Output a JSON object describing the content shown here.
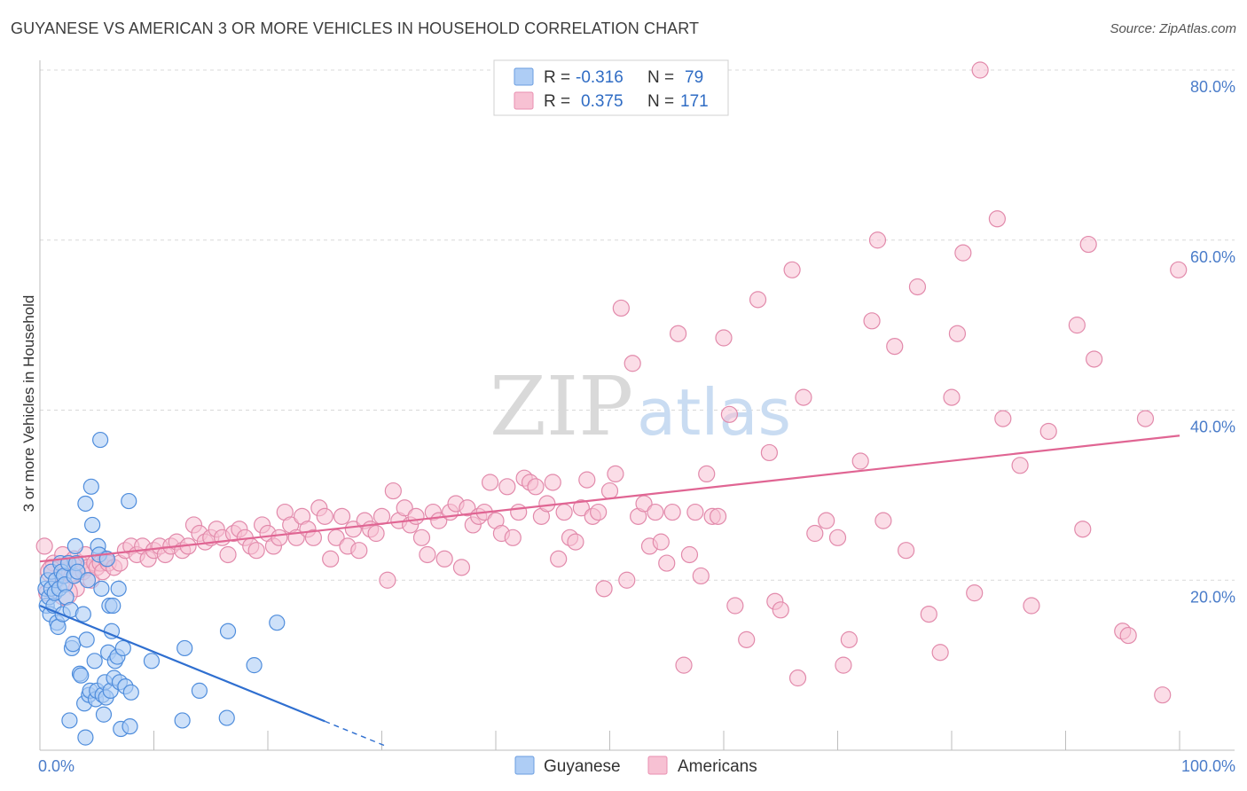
{
  "header": {
    "title": "GUYANESE VS AMERICAN 3 OR MORE VEHICLES IN HOUSEHOLD CORRELATION CHART",
    "source": "Source: ZipAtlas.com"
  },
  "legend": {
    "r_label": "R =",
    "n_label": "N =",
    "rows": [
      {
        "r": "-0.316",
        "n": "79",
        "fill": "#aecdf5",
        "stroke": "#6a9de0"
      },
      {
        "r": "0.375",
        "n": "171",
        "fill": "#f7c1d3",
        "stroke": "#e98fb0"
      }
    ]
  },
  "watermark": {
    "zip": "ZIP",
    "atlas": "atlas"
  },
  "colors": {
    "guyanese_fill": "#aecdf5",
    "guyanese_stroke": "#4f8ddc",
    "guyanese_line": "#2f6fd0",
    "american_fill": "#f7c1d3",
    "american_stroke": "#e28aab",
    "american_line": "#e06593",
    "grid": "#d9d9d9",
    "tick_text": "#4a7cc9"
  },
  "chart_data": {
    "type": "scatter",
    "title": "GUYANESE VS AMERICAN 3 OR MORE VEHICLES IN HOUSEHOLD CORRELATION CHART",
    "ylabel": "3 or more Vehicles in Household",
    "xlabel": "",
    "xlim": [
      0,
      100
    ],
    "ylim": [
      0,
      80
    ],
    "x_tick_labels": [
      "0.0%",
      "100.0%"
    ],
    "y_ticks": [
      20,
      40,
      60,
      80
    ],
    "y_tick_labels": [
      "20.0%",
      "40.0%",
      "60.0%",
      "80.0%"
    ],
    "grid": "horizontal dashed",
    "legend_position": "bottom",
    "series": [
      {
        "name": "Guyanese",
        "r": -0.316,
        "n": 79,
        "trend": {
          "x0": 0,
          "y0": 17.0,
          "x1": 25,
          "y1": 3.4,
          "dashed_to_x": 30.5
        },
        "points": [
          [
            0.5,
            19
          ],
          [
            0.6,
            17
          ],
          [
            0.7,
            20
          ],
          [
            0.8,
            18
          ],
          [
            0.9,
            16
          ],
          [
            1.0,
            21
          ],
          [
            1.0,
            19
          ],
          [
            1.2,
            17
          ],
          [
            1.3,
            18.5
          ],
          [
            1.4,
            20
          ],
          [
            1.5,
            15
          ],
          [
            1.6,
            14.5
          ],
          [
            1.7,
            19
          ],
          [
            1.8,
            22
          ],
          [
            1.9,
            21
          ],
          [
            2.0,
            16
          ],
          [
            2.1,
            20.5
          ],
          [
            2.2,
            19.5
          ],
          [
            2.3,
            18
          ],
          [
            2.5,
            22
          ],
          [
            2.6,
            3.5
          ],
          [
            2.7,
            16.5
          ],
          [
            2.8,
            12
          ],
          [
            2.9,
            12.5
          ],
          [
            3.0,
            20.5
          ],
          [
            3.1,
            24
          ],
          [
            3.2,
            22
          ],
          [
            3.3,
            21
          ],
          [
            3.5,
            9
          ],
          [
            3.6,
            8.8
          ],
          [
            3.8,
            16
          ],
          [
            3.9,
            5.5
          ],
          [
            4.0,
            29
          ],
          [
            4.0,
            1.5
          ],
          [
            4.1,
            13
          ],
          [
            4.2,
            20
          ],
          [
            4.3,
            6.5
          ],
          [
            4.4,
            7
          ],
          [
            4.5,
            31
          ],
          [
            4.6,
            26.5
          ],
          [
            4.8,
            10.5
          ],
          [
            4.9,
            6
          ],
          [
            5.0,
            7
          ],
          [
            5.1,
            24
          ],
          [
            5.2,
            23
          ],
          [
            5.3,
            36.5
          ],
          [
            5.4,
            19
          ],
          [
            5.5,
            6.5
          ],
          [
            5.6,
            4.2
          ],
          [
            5.7,
            8
          ],
          [
            5.8,
            6.2
          ],
          [
            5.9,
            22.5
          ],
          [
            6.0,
            11.5
          ],
          [
            6.1,
            17
          ],
          [
            6.2,
            7
          ],
          [
            6.3,
            14
          ],
          [
            6.4,
            17
          ],
          [
            6.5,
            8.5
          ],
          [
            6.6,
            10.5
          ],
          [
            6.8,
            11
          ],
          [
            6.9,
            19
          ],
          [
            7.0,
            8
          ],
          [
            7.1,
            2.5
          ],
          [
            7.3,
            12
          ],
          [
            7.5,
            7.5
          ],
          [
            7.8,
            29.3
          ],
          [
            7.9,
            2.8
          ],
          [
            8.0,
            6.8
          ],
          [
            9.8,
            10.5
          ],
          [
            12.5,
            3.5
          ],
          [
            12.7,
            12
          ],
          [
            14.0,
            7
          ],
          [
            16.4,
            3.8
          ],
          [
            16.5,
            14
          ],
          [
            18.8,
            10
          ],
          [
            20.8,
            15
          ]
        ]
      },
      {
        "name": "Americans",
        "r": 0.375,
        "n": 171,
        "trend": {
          "x0": 0,
          "y0": 22.2,
          "x1": 100,
          "y1": 37.0
        },
        "points": [
          [
            0.4,
            24
          ],
          [
            0.6,
            18.5
          ],
          [
            1.0,
            21.5
          ],
          [
            1.2,
            22
          ],
          [
            1.5,
            20
          ],
          [
            2.0,
            23
          ],
          [
            2.2,
            21
          ],
          [
            2.5,
            22
          ],
          [
            2.8,
            20.5
          ],
          [
            3.0,
            22.5
          ],
          [
            3.2,
            19
          ],
          [
            3.5,
            22
          ],
          [
            3.8,
            21
          ],
          [
            4.0,
            23
          ],
          [
            4.2,
            21.5
          ],
          [
            4.5,
            20
          ],
          [
            4.8,
            22
          ],
          [
            5.0,
            21.5
          ],
          [
            5.3,
            22
          ],
          [
            5.5,
            21
          ],
          [
            5.8,
            22.5
          ],
          [
            6.0,
            22
          ],
          [
            6.5,
            21.5
          ],
          [
            7.0,
            22
          ],
          [
            7.5,
            23.5
          ],
          [
            8.0,
            24
          ],
          [
            8.5,
            23
          ],
          [
            9.0,
            24
          ],
          [
            9.5,
            22.5
          ],
          [
            10.0,
            23.5
          ],
          [
            10.5,
            24
          ],
          [
            11.0,
            23
          ],
          [
            11.5,
            24
          ],
          [
            12.0,
            24.5
          ],
          [
            12.5,
            23.5
          ],
          [
            13.0,
            24
          ],
          [
            13.5,
            26.5
          ],
          [
            14.0,
            25.5
          ],
          [
            14.5,
            24.5
          ],
          [
            15.0,
            25
          ],
          [
            15.5,
            26
          ],
          [
            16.0,
            25
          ],
          [
            16.5,
            23
          ],
          [
            17.0,
            25.5
          ],
          [
            17.5,
            26
          ],
          [
            18.0,
            25
          ],
          [
            18.5,
            24
          ],
          [
            19.0,
            23.5
          ],
          [
            19.5,
            26.5
          ],
          [
            20.0,
            25.5
          ],
          [
            20.5,
            24
          ],
          [
            21.0,
            25
          ],
          [
            21.5,
            28
          ],
          [
            22.0,
            26.5
          ],
          [
            22.5,
            25
          ],
          [
            23.0,
            27.5
          ],
          [
            23.5,
            26
          ],
          [
            24.0,
            25
          ],
          [
            24.5,
            28.5
          ],
          [
            25.0,
            27.5
          ],
          [
            25.5,
            22.5
          ],
          [
            26.0,
            25
          ],
          [
            26.5,
            27.5
          ],
          [
            27.0,
            24
          ],
          [
            27.5,
            26
          ],
          [
            28.0,
            23.5
          ],
          [
            28.5,
            27
          ],
          [
            29.0,
            26
          ],
          [
            29.5,
            25.5
          ],
          [
            30.0,
            27.5
          ],
          [
            30.5,
            20
          ],
          [
            31.0,
            30.5
          ],
          [
            31.5,
            27
          ],
          [
            32.0,
            28.5
          ],
          [
            32.5,
            26.5
          ],
          [
            33.0,
            27.5
          ],
          [
            33.5,
            25
          ],
          [
            34.0,
            23
          ],
          [
            34.5,
            28
          ],
          [
            35.0,
            27
          ],
          [
            35.5,
            22.5
          ],
          [
            36.0,
            28
          ],
          [
            36.5,
            29
          ],
          [
            37.0,
            21.5
          ],
          [
            37.5,
            28.5
          ],
          [
            38.0,
            26.5
          ],
          [
            38.5,
            27.5
          ],
          [
            39.0,
            28
          ],
          [
            39.5,
            31.5
          ],
          [
            40.0,
            27
          ],
          [
            40.5,
            25.5
          ],
          [
            41.0,
            31
          ],
          [
            41.5,
            25
          ],
          [
            42.0,
            28
          ],
          [
            42.5,
            32
          ],
          [
            43.0,
            31.5
          ],
          [
            43.5,
            31
          ],
          [
            44.0,
            27.5
          ],
          [
            44.5,
            29
          ],
          [
            45.0,
            31.5
          ],
          [
            45.5,
            22.5
          ],
          [
            46.0,
            28
          ],
          [
            46.5,
            25
          ],
          [
            47.0,
            24.5
          ],
          [
            47.5,
            28.5
          ],
          [
            48.0,
            31.8
          ],
          [
            48.5,
            27.5
          ],
          [
            49.0,
            28
          ],
          [
            49.5,
            19
          ],
          [
            50.0,
            30.5
          ],
          [
            50.5,
            32.5
          ],
          [
            51.0,
            52
          ],
          [
            51.5,
            20
          ],
          [
            52.0,
            45.5
          ],
          [
            52.5,
            27.5
          ],
          [
            53.0,
            29
          ],
          [
            53.5,
            24
          ],
          [
            54.0,
            28
          ],
          [
            54.5,
            24.5
          ],
          [
            55.0,
            22
          ],
          [
            55.5,
            28
          ],
          [
            56.0,
            49
          ],
          [
            56.5,
            10
          ],
          [
            57.0,
            23
          ],
          [
            57.5,
            28
          ],
          [
            58.0,
            20.5
          ],
          [
            58.5,
            32.5
          ],
          [
            59.0,
            27.5
          ],
          [
            59.5,
            27.5
          ],
          [
            60.0,
            48.5
          ],
          [
            60.5,
            39.5
          ],
          [
            61.0,
            17
          ],
          [
            62.0,
            13
          ],
          [
            63.0,
            53
          ],
          [
            64.0,
            35
          ],
          [
            64.5,
            17.5
          ],
          [
            65.0,
            16.5
          ],
          [
            66.0,
            56.5
          ],
          [
            66.5,
            8.5
          ],
          [
            67.0,
            41.5
          ],
          [
            68.0,
            25.5
          ],
          [
            69.0,
            27
          ],
          [
            70.0,
            25
          ],
          [
            70.5,
            10
          ],
          [
            71.0,
            13
          ],
          [
            72.0,
            34
          ],
          [
            73.0,
            50.5
          ],
          [
            73.5,
            60
          ],
          [
            74.0,
            27
          ],
          [
            75.0,
            47.5
          ],
          [
            76.0,
            23.5
          ],
          [
            77.0,
            54.5
          ],
          [
            78.0,
            16
          ],
          [
            79.0,
            11.5
          ],
          [
            80.0,
            41.5
          ],
          [
            80.5,
            49
          ],
          [
            81.0,
            58.5
          ],
          [
            82.0,
            18.5
          ],
          [
            82.5,
            80
          ],
          [
            84.0,
            62.5
          ],
          [
            84.5,
            39
          ],
          [
            86.0,
            33.5
          ],
          [
            87.0,
            17
          ],
          [
            88.5,
            37.5
          ],
          [
            91.0,
            50
          ],
          [
            91.5,
            26
          ],
          [
            92.0,
            59.5
          ],
          [
            92.5,
            46
          ],
          [
            95.0,
            14
          ],
          [
            95.5,
            13.5
          ],
          [
            97.0,
            39
          ],
          [
            98.5,
            6.5
          ],
          [
            99.9,
            56.5
          ]
        ]
      }
    ]
  },
  "bottom_legend": [
    {
      "label": "Guyanese"
    },
    {
      "label": "Americans"
    }
  ]
}
